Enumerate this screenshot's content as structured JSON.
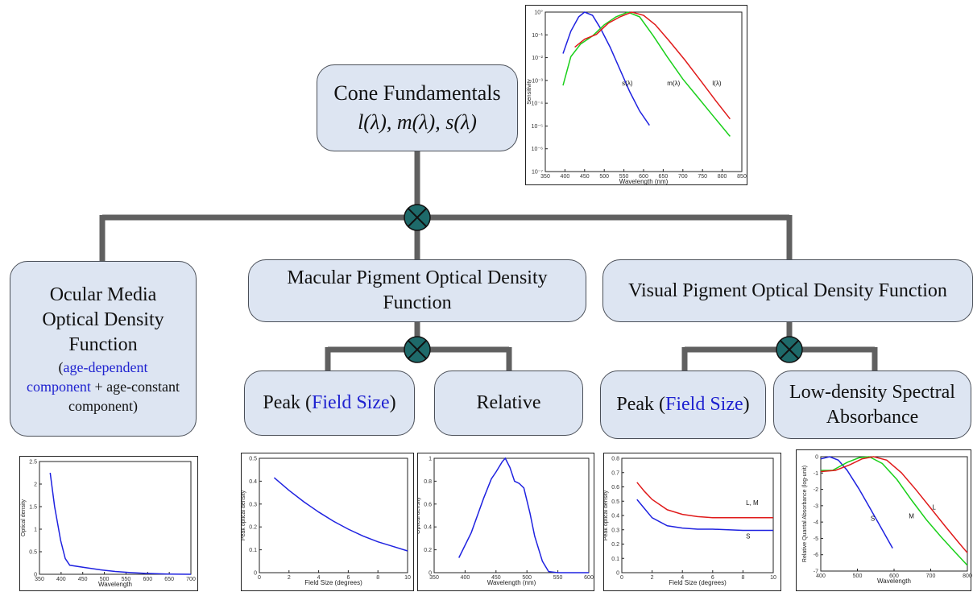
{
  "colors": {
    "box_fill": "#dde5f2",
    "connector": "#606060",
    "node_fill": "#1e6a6a",
    "highlight_text": "#1f22d0",
    "curve_blue": "#1f22e0",
    "curve_red": "#e01a1a",
    "curve_green": "#1ad01a"
  },
  "root": {
    "title": "Cone Fundamentals",
    "formula": "l(λ), m(λ), s(λ)"
  },
  "ocular": {
    "line1": "Ocular Media",
    "line2": "Optical Density",
    "line3": "Function",
    "open_paren": "(",
    "age_dep_1": "age-dependent",
    "age_dep_2": "component",
    "plus_text": " + age-constant",
    "line_last": "component)"
  },
  "macular": {
    "title_line1": "Macular Pigment Optical Density",
    "title_line2": "Function",
    "peak_prefix": "Peak (",
    "peak_field": "Field Size",
    "peak_suffix": ")",
    "relative": "Relative"
  },
  "visual": {
    "title": "Visual Pigment Optical Density Function",
    "peak_prefix": "Peak (",
    "peak_field": "Field Size",
    "peak_suffix": ")",
    "low_line1": "Low-density Spectral",
    "low_line2": "Absorbance"
  },
  "charts": {
    "cone": {
      "xlabel": "Wavelength (nm)",
      "ylabel": "Sensitivity",
      "xticks": [
        "350",
        "400",
        "450",
        "500",
        "550",
        "600",
        "650",
        "700",
        "750",
        "800",
        "850"
      ],
      "yticks": [
        "10°",
        "10⁻¹",
        "10⁻²",
        "10⁻³",
        "10⁻⁴",
        "10⁻⁵",
        "10⁻⁶",
        "10⁻⁷"
      ],
      "labels": {
        "s": "s(λ)",
        "m": "m(λ)",
        "l": "l(λ)"
      }
    },
    "ocular": {
      "xlabel": "Wavelength",
      "ylabel": "Optical density",
      "xticks": [
        "350",
        "400",
        "450",
        "500",
        "550",
        "600",
        "650",
        "700"
      ],
      "yticks": [
        "0",
        "0.5",
        "1",
        "1.5",
        "2",
        "2.5"
      ]
    },
    "macular_peak": {
      "xlabel": "Field Size (degrees)",
      "ylabel": "Peak optical density",
      "xticks": [
        "0",
        "2",
        "4",
        "6",
        "8",
        "10"
      ],
      "yticks": [
        "0",
        "0.1",
        "0.2",
        "0.3",
        "0.4",
        "0.5"
      ]
    },
    "macular_rel": {
      "xlabel": "Wavelength (nm)",
      "ylabel": "Optical density",
      "xticks": [
        "350",
        "400",
        "450",
        "500",
        "550",
        "600"
      ],
      "yticks": [
        "0",
        "0.2",
        "0.4",
        "0.6",
        "0.8",
        "1"
      ]
    },
    "visual_peak": {
      "xlabel": "Field Size (degrees)",
      "ylabel": "Peak optical density",
      "xticks": [
        "0",
        "2",
        "4",
        "6",
        "8",
        "10"
      ],
      "yticks": [
        "0",
        "0.1",
        "0.2",
        "0.3",
        "0.4",
        "0.5",
        "0.6",
        "0.7",
        "0.8"
      ],
      "labels": {
        "lm": "L, M",
        "s": "S"
      }
    },
    "absorbance": {
      "xlabel": "Wavelength",
      "ylabel": "Relative Quantal Absorbance (log-unit)",
      "xticks": [
        "400",
        "500",
        "600",
        "700",
        "800"
      ],
      "yticks": [
        "0",
        "-1",
        "-2",
        "-3",
        "-4",
        "-5",
        "-6",
        "-7"
      ],
      "labels": {
        "s": "S",
        "m": "M",
        "l": "L"
      }
    }
  }
}
